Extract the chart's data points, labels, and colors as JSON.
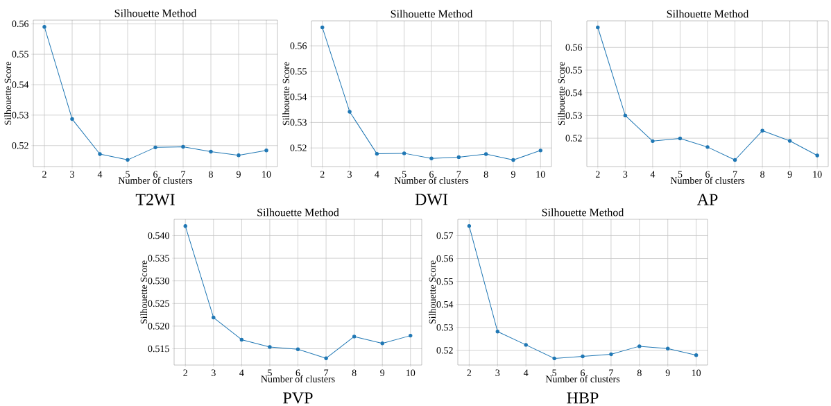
{
  "chart_data": [
    {
      "type": "line",
      "title": "Silhouette Method",
      "xlabel": "Number of clusters",
      "ylabel": "Silhouette Score",
      "annotations": [
        "T2WI"
      ],
      "x": [
        2,
        3,
        4,
        5,
        6,
        7,
        8,
        9,
        10
      ],
      "series": [
        {
          "color": "#1f77b4",
          "values": [
            0.559,
            0.5287,
            0.5172,
            0.5153,
            0.5194,
            0.5196,
            0.518,
            0.5168,
            0.5184
          ]
        }
      ],
      "marker": "circle",
      "line_style": "solid",
      "grid": true,
      "xlim": [
        1.6,
        10.4
      ],
      "ylim": [
        0.5131,
        0.5612
      ],
      "xticks": [
        2,
        3,
        4,
        5,
        6,
        7,
        8,
        9,
        10
      ],
      "yticks": [
        0.52,
        0.53,
        0.54,
        0.55,
        0.56
      ]
    },
    {
      "type": "line",
      "title": "Silhouette Method",
      "xlabel": "Number of clusters",
      "ylabel": "Silhouette Score",
      "annotations": [
        "DWI"
      ],
      "x": [
        2,
        3,
        4,
        5,
        6,
        7,
        8,
        9,
        10
      ],
      "series": [
        {
          "color": "#1f77b4",
          "values": [
            0.5672,
            0.5342,
            0.5177,
            0.5179,
            0.5159,
            0.5164,
            0.5176,
            0.5153,
            0.519
          ]
        }
      ],
      "marker": "circle",
      "line_style": "solid",
      "grid": true,
      "xlim": [
        1.6,
        10.4
      ],
      "ylim": [
        0.5127,
        0.5698
      ],
      "xticks": [
        2,
        3,
        4,
        5,
        6,
        7,
        8,
        9,
        10
      ],
      "yticks": [
        0.52,
        0.53,
        0.54,
        0.55,
        0.56
      ]
    },
    {
      "type": "line",
      "title": "Silhouette Method",
      "xlabel": "Number of clusters",
      "ylabel": "Silhouette Score",
      "annotations": [
        "AP"
      ],
      "x": [
        2,
        3,
        4,
        5,
        6,
        7,
        8,
        9,
        10
      ],
      "series": [
        {
          "color": "#1f77b4",
          "values": [
            0.5688,
            0.53,
            0.5187,
            0.5199,
            0.5161,
            0.5104,
            0.5233,
            0.5188,
            0.5124
          ]
        }
      ],
      "marker": "circle",
      "line_style": "solid",
      "grid": true,
      "xlim": [
        1.6,
        10.4
      ],
      "ylim": [
        0.5075,
        0.5717
      ],
      "xticks": [
        2,
        3,
        4,
        5,
        6,
        7,
        8,
        9,
        10
      ],
      "yticks": [
        0.52,
        0.53,
        0.54,
        0.55,
        0.56
      ]
    },
    {
      "type": "line",
      "title": "Silhouette Method",
      "xlabel": "Number of clusters",
      "ylabel": "Silhouette Score",
      "annotations": [
        "PVP"
      ],
      "x": [
        2,
        3,
        4,
        5,
        6,
        7,
        8,
        9,
        10
      ],
      "series": [
        {
          "color": "#1f77b4",
          "values": [
            0.5421,
            0.5219,
            0.517,
            0.5154,
            0.5149,
            0.5129,
            0.5177,
            0.5162,
            0.5179
          ]
        }
      ],
      "marker": "circle",
      "line_style": "solid",
      "grid": true,
      "xlim": [
        1.6,
        10.4
      ],
      "ylim": [
        0.5114,
        0.5436
      ],
      "xticks": [
        2,
        3,
        4,
        5,
        6,
        7,
        8,
        9,
        10
      ],
      "yticks": [
        0.515,
        {
          "value": 0.52,
          "label": "0.520"
        },
        0.525,
        {
          "value": 0.53,
          "label": "0.530"
        },
        0.535,
        {
          "value": 0.54,
          "label": "0.540"
        }
      ]
    },
    {
      "type": "line",
      "title": "Silhouette Method",
      "xlabel": "Number of clusters",
      "ylabel": "Silhouette Score",
      "annotations": [
        "HBP"
      ],
      "x": [
        2,
        3,
        4,
        5,
        6,
        7,
        8,
        9,
        10
      ],
      "series": [
        {
          "color": "#1f77b4",
          "values": [
            0.5742,
            0.5282,
            0.5224,
            0.5165,
            0.5174,
            0.5183,
            0.5218,
            0.5208,
            0.5179
          ]
        }
      ],
      "marker": "circle",
      "line_style": "solid",
      "grid": true,
      "xlim": [
        1.6,
        10.4
      ],
      "ylim": [
        0.5136,
        0.5771
      ],
      "xticks": [
        2,
        3,
        4,
        5,
        6,
        7,
        8,
        9,
        10
      ],
      "yticks": [
        0.52,
        0.53,
        0.54,
        0.55,
        0.56,
        0.57
      ]
    }
  ]
}
